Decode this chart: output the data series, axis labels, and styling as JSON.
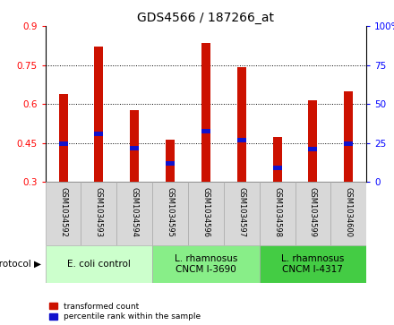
{
  "title": "GDS4566 / 187266_at",
  "samples": [
    "GSM1034592",
    "GSM1034593",
    "GSM1034594",
    "GSM1034595",
    "GSM1034596",
    "GSM1034597",
    "GSM1034598",
    "GSM1034599",
    "GSM1034600"
  ],
  "transformed_count": [
    0.64,
    0.82,
    0.575,
    0.462,
    0.835,
    0.742,
    0.472,
    0.615,
    0.648
  ],
  "percentile_bottom": [
    0.438,
    0.477,
    0.42,
    0.362,
    0.487,
    0.452,
    0.346,
    0.418,
    0.438
  ],
  "percentile_top": [
    0.455,
    0.494,
    0.437,
    0.379,
    0.504,
    0.469,
    0.363,
    0.435,
    0.455
  ],
  "bar_bottom": 0.3,
  "ylim": [
    0.3,
    0.9
  ],
  "ylim_right": [
    0,
    100
  ],
  "yticks_left": [
    0.3,
    0.45,
    0.6,
    0.75,
    0.9
  ],
  "yticks_right": [
    0,
    25,
    50,
    75,
    100
  ],
  "bar_color": "#cc1100",
  "percentile_color": "#1111cc",
  "protocol_groups": [
    {
      "label": "E. coli control",
      "start": 0,
      "end": 3,
      "color": "#ccffcc"
    },
    {
      "label": "L. rhamnosus\nCNCM I-3690",
      "start": 3,
      "end": 6,
      "color": "#88ee88"
    },
    {
      "label": "L. rhamnosus\nCNCM I-4317",
      "start": 6,
      "end": 9,
      "color": "#44cc44"
    }
  ],
  "legend_red_label": "transformed count",
  "legend_blue_label": "percentile rank within the sample",
  "bar_width": 0.25,
  "title_fontsize": 10,
  "tick_fontsize": 7.5,
  "sample_fontsize": 6,
  "proto_fontsize": 7.5
}
